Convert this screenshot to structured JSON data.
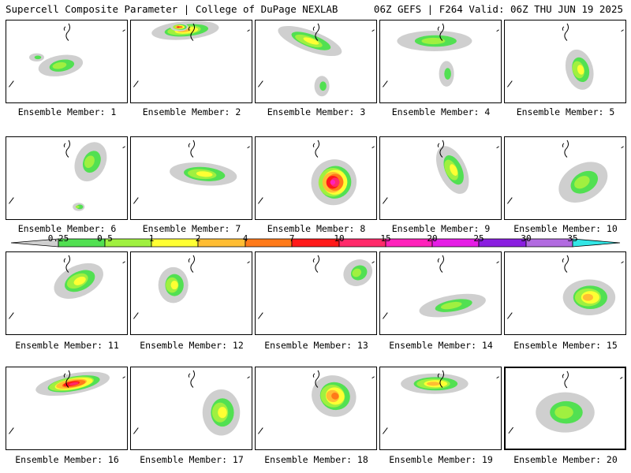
{
  "header": {
    "left": "Supercell Composite Parameter | College of DuPage NEXLAB",
    "right": "06Z GEFS | F264 Valid: 06Z THU JUN 19 2025"
  },
  "colorbar": {
    "ticks": [
      "0.25",
      "0.5",
      "1",
      "2",
      "4",
      "7",
      "10",
      "15",
      "20",
      "25",
      "30",
      "35"
    ],
    "colors": [
      "#cfcfcf",
      "#52e052",
      "#a0f040",
      "#ffff33",
      "#ffbd33",
      "#ff7a19",
      "#ff1919",
      "#ff2a6a",
      "#ff22bb",
      "#e51de5",
      "#8a1fe0",
      "#b26be0",
      "#33e6e6"
    ]
  },
  "member_label_prefix": "Ensemble Member:",
  "members": [
    {
      "label": "Ensemble Member: 1",
      "blobs": [
        [
          0.45,
          0.55,
          0.3,
          0.2,
          -10,
          2
        ],
        [
          0.25,
          0.45,
          0.1,
          0.08,
          0,
          1
        ]
      ]
    },
    {
      "label": "Ensemble Member: 2",
      "blobs": [
        [
          0.45,
          0.12,
          0.45,
          0.18,
          -5,
          4
        ],
        [
          0.4,
          0.08,
          0.12,
          0.08,
          0,
          6
        ]
      ]
    },
    {
      "label": "Ensemble Member: 3",
      "blobs": [
        [
          0.45,
          0.25,
          0.45,
          0.2,
          20,
          3
        ],
        [
          0.55,
          0.8,
          0.1,
          0.2,
          0,
          1
        ]
      ]
    },
    {
      "label": "Ensemble Member: 4",
      "blobs": [
        [
          0.45,
          0.25,
          0.5,
          0.2,
          0,
          2
        ],
        [
          0.55,
          0.65,
          0.1,
          0.25,
          0,
          1
        ]
      ]
    },
    {
      "label": "Ensemble Member: 5",
      "blobs": [
        [
          0.62,
          0.6,
          0.18,
          0.4,
          -15,
          3
        ]
      ]
    },
    {
      "label": "Ensemble Member: 6",
      "blobs": [
        [
          0.7,
          0.3,
          0.2,
          0.4,
          25,
          2
        ],
        [
          0.6,
          0.85,
          0.08,
          0.08,
          0,
          2
        ]
      ]
    },
    {
      "label": "Ensemble Member: 7",
      "blobs": [
        [
          0.6,
          0.45,
          0.45,
          0.22,
          5,
          3
        ]
      ]
    },
    {
      "label": "Ensemble Member: 8",
      "blobs": [
        [
          0.65,
          0.55,
          0.3,
          0.45,
          35,
          8
        ]
      ]
    },
    {
      "label": "Ensemble Member: 9",
      "blobs": [
        [
          0.6,
          0.4,
          0.18,
          0.5,
          -25,
          3
        ]
      ]
    },
    {
      "label": "Ensemble Member: 10",
      "blobs": [
        [
          0.65,
          0.55,
          0.35,
          0.35,
          -30,
          2
        ]
      ]
    },
    {
      "label": "Ensemble Member: 11",
      "blobs": [
        [
          0.6,
          0.35,
          0.35,
          0.3,
          -25,
          3
        ]
      ]
    },
    {
      "label": "Ensemble Member: 12",
      "blobs": [
        [
          0.35,
          0.4,
          0.2,
          0.35,
          0,
          3
        ]
      ]
    },
    {
      "label": "Ensemble Member: 13",
      "blobs": [
        [
          0.85,
          0.25,
          0.2,
          0.25,
          -30,
          2
        ]
      ]
    },
    {
      "label": "Ensemble Member: 14",
      "blobs": [
        [
          0.6,
          0.65,
          0.45,
          0.2,
          -10,
          2
        ]
      ]
    },
    {
      "label": "Ensemble Member: 15",
      "blobs": [
        [
          0.7,
          0.55,
          0.35,
          0.35,
          0,
          4
        ]
      ]
    },
    {
      "label": "Ensemble Member: 16",
      "blobs": [
        [
          0.55,
          0.2,
          0.5,
          0.2,
          -10,
          7
        ]
      ]
    },
    {
      "label": "Ensemble Member: 17",
      "blobs": [
        [
          0.75,
          0.55,
          0.25,
          0.45,
          0,
          3
        ]
      ]
    },
    {
      "label": "Ensemble Member: 18",
      "blobs": [
        [
          0.65,
          0.35,
          0.3,
          0.4,
          20,
          5
        ]
      ]
    },
    {
      "label": "Ensemble Member: 19",
      "blobs": [
        [
          0.45,
          0.2,
          0.45,
          0.2,
          0,
          4
        ]
      ]
    },
    {
      "label": "Ensemble Member: 20",
      "blobs": [
        [
          0.5,
          0.55,
          0.4,
          0.4,
          0,
          2
        ]
      ]
    }
  ]
}
